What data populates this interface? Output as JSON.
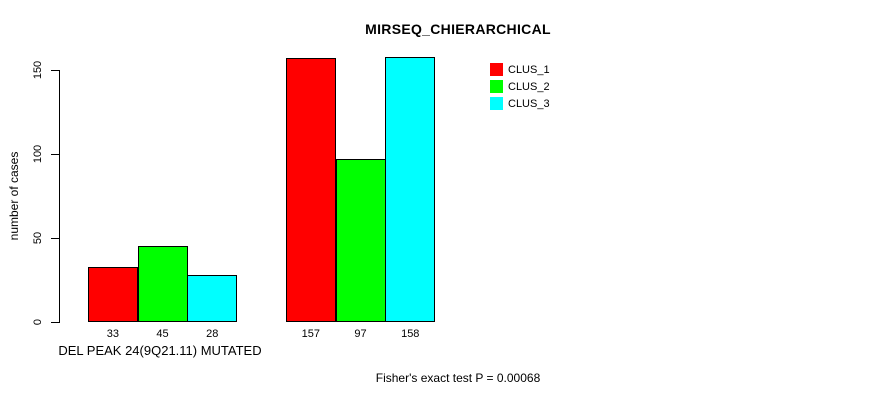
{
  "chart_data": {
    "type": "bar",
    "title": "MIRSEQ_CHIERARCHICAL",
    "ylabel": "number of cases",
    "xlabel": "DEL PEAK 24(9Q21.11) MUTATED",
    "ylim": [
      0,
      160
    ],
    "yticks": [
      0,
      50,
      100,
      150
    ],
    "categories": [
      "DEL PEAK 24(9Q21.11) MUTATED",
      ""
    ],
    "series": [
      {
        "name": "CLUS_1",
        "color": "#FF0000",
        "values": [
          33,
          157
        ]
      },
      {
        "name": "CLUS_2",
        "color": "#00FF00",
        "values": [
          45,
          97
        ]
      },
      {
        "name": "CLUS_3",
        "color": "#00FFFF",
        "values": [
          28,
          158
        ]
      }
    ],
    "bar_value_labels": [
      [
        "33",
        "45",
        "28"
      ],
      [
        "157",
        "97",
        "158"
      ]
    ],
    "legend_position": "top-right",
    "annotation": "Fisher's exact test P = 0.00068",
    "grid": false,
    "background_color": "#FFFFFF",
    "text_color": "#000000"
  }
}
